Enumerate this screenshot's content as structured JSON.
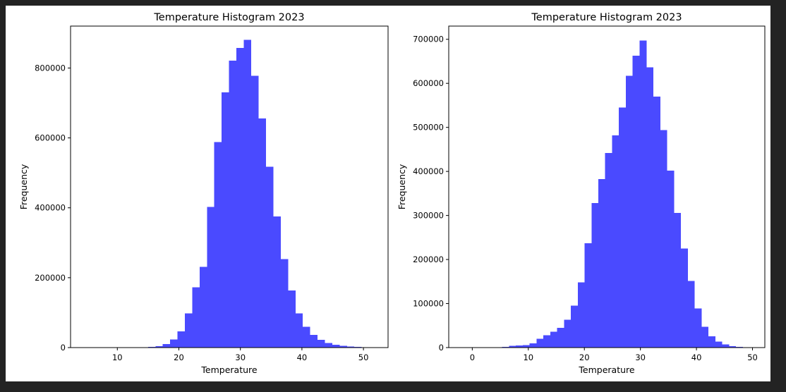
{
  "colors": {
    "bar": "#4a4aff",
    "background": "#232323",
    "figure": "#ffffff"
  },
  "chart_data": [
    {
      "type": "bar",
      "title": "Temperature Histogram 2023",
      "xlabel": "Temperature",
      "ylabel": "Frequency",
      "xlim": [
        2.4,
        54.0
      ],
      "ylim": [
        0,
        920000
      ],
      "xticks": [
        10,
        20,
        30,
        40,
        50
      ],
      "yticks": [
        0,
        200000,
        400000,
        600000,
        800000
      ],
      "grid": false,
      "bin_width": 1.196,
      "bin_start": 13.8,
      "values": [
        1000,
        2000,
        4000,
        10000,
        23000,
        46000,
        98000,
        173000,
        231000,
        403000,
        588000,
        730000,
        821000,
        857000,
        881000,
        778000,
        656000,
        518000,
        375000,
        253000,
        163000,
        98000,
        60000,
        36000,
        22000,
        13000,
        8000,
        5000,
        3000,
        2000,
        1000,
        1000
      ]
    },
    {
      "type": "bar",
      "title": "Temperature Histogram 2023",
      "xlabel": "Temperature",
      "ylabel": "Frequency",
      "xlim": [
        -4.2,
        52.2
      ],
      "ylim": [
        0,
        730000
      ],
      "xticks": [
        0,
        10,
        20,
        30,
        40,
        50
      ],
      "yticks": [
        0,
        100000,
        200000,
        300000,
        400000,
        500000,
        600000,
        700000
      ],
      "grid": false,
      "bin_width": 1.226,
      "bin_start": 4.1,
      "values": [
        1000,
        2000,
        4000,
        5000,
        6000,
        10000,
        20000,
        28000,
        36000,
        45000,
        63000,
        95000,
        148000,
        237000,
        328000,
        383000,
        442000,
        482000,
        545000,
        617000,
        663000,
        697000,
        636000,
        570000,
        494000,
        402000,
        306000,
        225000,
        151000,
        89000,
        47000,
        26000,
        14000,
        7000,
        3000,
        2000,
        1000
      ]
    }
  ]
}
